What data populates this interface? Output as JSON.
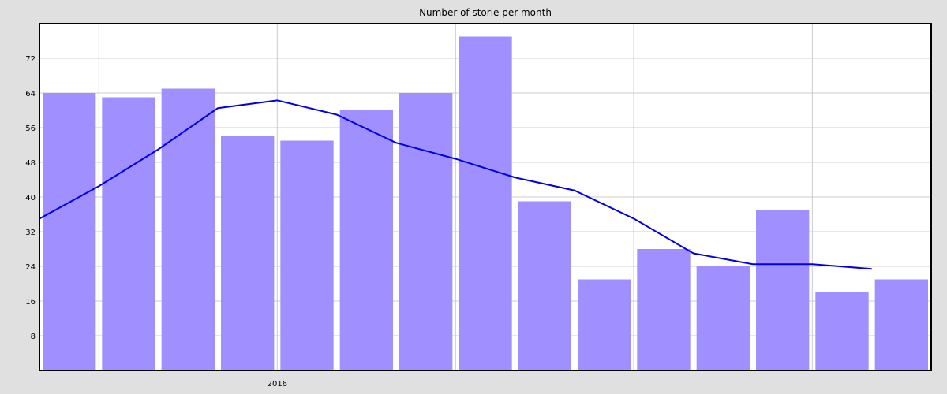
{
  "chart_data": {
    "type": "bar",
    "title": "Number of storie per month",
    "xlabel": "",
    "ylabel": "",
    "ylim": [
      0,
      80
    ],
    "yticks": [
      8,
      16,
      24,
      32,
      40,
      48,
      56,
      64,
      72
    ],
    "xtick_labels": [
      {
        "label": "2016",
        "position": 4
      }
    ],
    "grid": true,
    "bar_color": "#9f8fff",
    "line_color": "#0000e6",
    "grid_color": "#cccccc",
    "background": "#e0e0e0",
    "series": [
      {
        "type": "bar",
        "values": [
          64,
          63,
          65,
          54,
          53,
          60,
          64,
          77,
          39,
          21,
          28,
          24,
          37,
          18,
          21
        ]
      },
      {
        "type": "line",
        "values": [
          35,
          42.5,
          51,
          60.5,
          62.3,
          59,
          52.5,
          48.8,
          44.5,
          41.5,
          35,
          27,
          24.5,
          24.5,
          23.4
        ]
      }
    ]
  }
}
